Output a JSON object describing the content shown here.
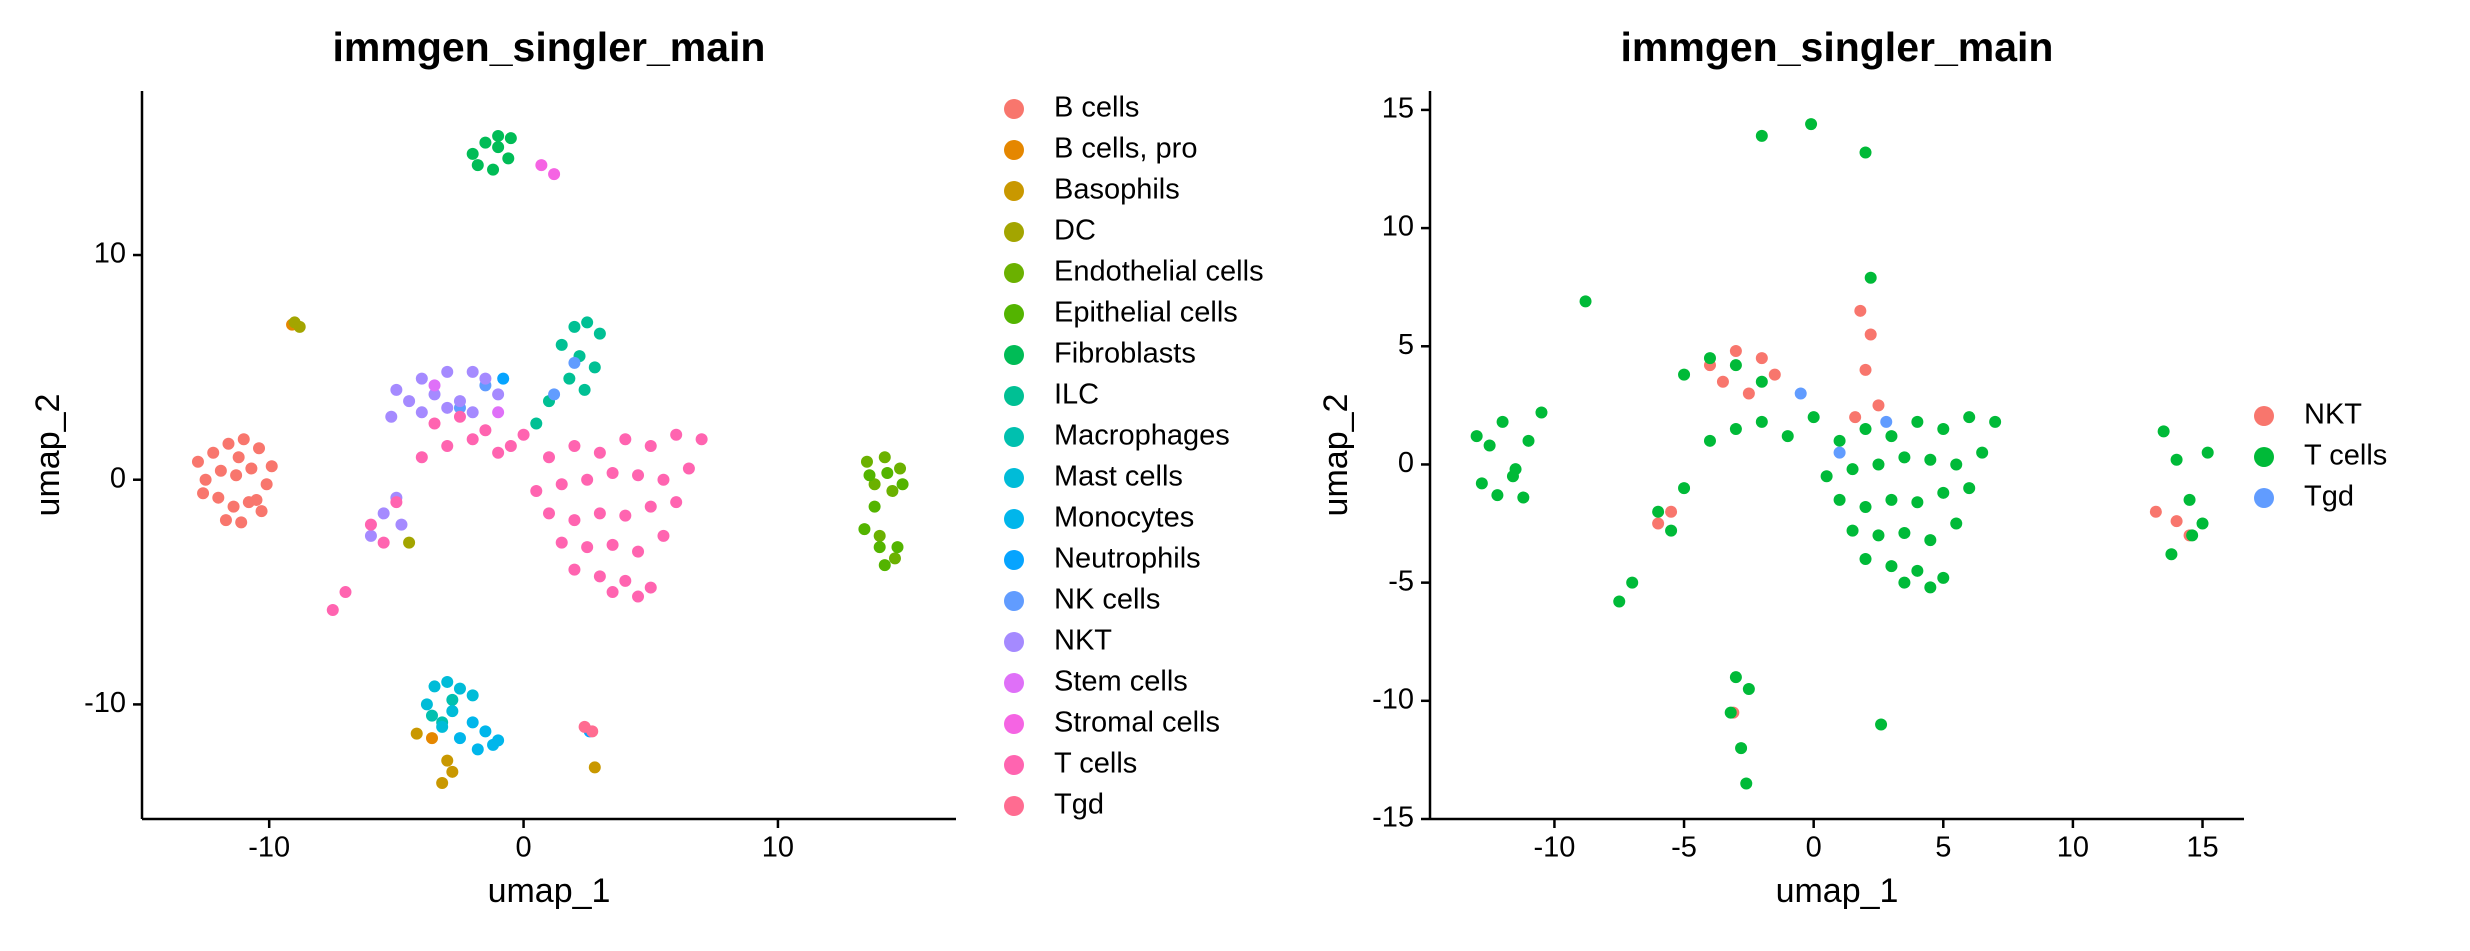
{
  "chart_data": [
    {
      "type": "scatter",
      "title": "immgen_singler_main",
      "x_label": "umap_1",
      "y_label": "umap_2",
      "xlim": [
        -15,
        17
      ],
      "ylim": [
        -15.1,
        17.3
      ],
      "xticks": [
        -10,
        0,
        10
      ],
      "yticks": [
        -10,
        0,
        10
      ],
      "series": [
        {
          "name": "B cells",
          "color": "#F8766D",
          "x": [
            -12.8,
            -12.2,
            -11.6,
            -11.0,
            -10.4,
            -9.9,
            -12.5,
            -11.9,
            -11.3,
            -10.7,
            -10.1,
            -12.0,
            -11.4,
            -10.8,
            -10.3,
            -12.6,
            -11.7,
            -11.1,
            -10.5,
            -11.2
          ],
          "y": [
            0.8,
            1.2,
            1.6,
            1.8,
            1.4,
            0.6,
            0.0,
            0.4,
            0.2,
            0.5,
            -0.2,
            -0.8,
            -1.2,
            -1.0,
            -1.4,
            -0.6,
            -1.8,
            -1.9,
            -0.9,
            1.0
          ]
        },
        {
          "name": "B cells, pro",
          "color": "#E58700",
          "x": [
            -3.6,
            -9.1
          ],
          "y": [
            -11.5,
            6.9
          ]
        },
        {
          "name": "Basophils",
          "color": "#C99800",
          "x": [
            -3,
            -2.8,
            -3.2,
            -4.2,
            2.8
          ],
          "y": [
            -12.5,
            -13,
            -13.5,
            -11.3,
            -12.8
          ]
        },
        {
          "name": "DC",
          "color": "#A3A500",
          "x": [
            -9,
            -8.8,
            -4.5
          ],
          "y": [
            7,
            6.8,
            -2.8
          ]
        },
        {
          "name": "Endothelial cells",
          "color": "#6BB100",
          "x": [
            13.5,
            14.2,
            14.8,
            13.8,
            14.5,
            14,
            14.6
          ],
          "y": [
            0.8,
            1,
            0.5,
            -0.2,
            -0.5,
            -2.5,
            -3.5
          ]
        },
        {
          "name": "Epithelial cells",
          "color": "#53B400",
          "x": [
            13.6,
            14.3,
            14.9,
            13.4,
            14,
            14.7,
            14.2,
            13.8
          ],
          "y": [
            0.2,
            0.3,
            -0.2,
            -2.2,
            -3,
            -3,
            -3.8,
            -1.2
          ]
        },
        {
          "name": "Fibroblasts",
          "color": "#00BC56",
          "x": [
            -2,
            -1.5,
            -1,
            -0.5,
            -1.8,
            -1.2,
            -0.6,
            -1
          ],
          "y": [
            14.5,
            15,
            15.3,
            15.2,
            14,
            13.8,
            14.3,
            14.8
          ]
        },
        {
          "name": "ILC",
          "color": "#00C094",
          "x": [
            1.5,
            2,
            2.5,
            3,
            2.2,
            2.8,
            1.8,
            2.4,
            1,
            0.5
          ],
          "y": [
            6,
            6.8,
            7,
            6.5,
            5.5,
            5,
            4.5,
            4,
            3.5,
            2.5
          ]
        },
        {
          "name": "Macrophages",
          "color": "#00C0AF",
          "x": [
            -3.6,
            -3.2,
            -2.8
          ],
          "y": [
            -10.5,
            -10.8,
            -9.8
          ]
        },
        {
          "name": "Mast cells",
          "color": "#00BCD8",
          "x": [
            -3.5,
            -3,
            -2.5,
            -2,
            -3.8,
            -2.8,
            -3.2
          ],
          "y": [
            -9.2,
            -9,
            -9.3,
            -9.6,
            -10,
            -10.3,
            -11
          ]
        },
        {
          "name": "Monocytes",
          "color": "#00B6EB",
          "x": [
            -2,
            -1.5,
            -1,
            -2.5,
            -1.8,
            -1.2
          ],
          "y": [
            -10.8,
            -11.2,
            -11.6,
            -11.5,
            -12,
            -11.8
          ]
        },
        {
          "name": "Neutrophils",
          "color": "#06A4FF",
          "x": [
            -0.8,
            2.6
          ],
          "y": [
            4.5,
            -11.2
          ]
        },
        {
          "name": "NK cells",
          "color": "#619CFF",
          "x": [
            -2.5,
            -1.5,
            2,
            1.2
          ],
          "y": [
            3.2,
            4.2,
            5.2,
            3.8
          ]
        },
        {
          "name": "NKT",
          "color": "#A58AFF",
          "x": [
            -5,
            -4,
            -3,
            -2,
            -1.5,
            -4.5,
            -3.5,
            -2.5,
            -1,
            -5.2,
            -4,
            -3,
            -2,
            -6,
            -5.5,
            -5,
            -4.8
          ],
          "y": [
            4,
            4.5,
            4.8,
            4.8,
            4.5,
            3.5,
            3.8,
            3.5,
            3.8,
            2.8,
            3,
            3.2,
            3,
            -2.5,
            -1.5,
            -0.8,
            -2
          ]
        },
        {
          "name": "Stem cells",
          "color": "#DF70F8",
          "x": [
            -1,
            -3.5
          ],
          "y": [
            3,
            4.2
          ]
        },
        {
          "name": "Stromal cells",
          "color": "#F564E3",
          "x": [
            0.7,
            1.2
          ],
          "y": [
            14,
            13.6
          ]
        },
        {
          "name": "T cells",
          "color": "#FF64B0",
          "x": [
            1,
            2,
            3,
            4,
            5,
            6,
            7,
            0.5,
            1.5,
            2.5,
            3.5,
            4.5,
            5.5,
            6.5,
            1,
            2,
            3,
            4,
            5,
            6,
            1.5,
            2.5,
            3.5,
            4.5,
            5.5,
            2,
            3,
            4,
            5,
            3.5,
            4.5,
            -3,
            -2,
            -1,
            0,
            -4,
            -5,
            -6,
            -5.5,
            -7,
            -7.5,
            -3.5,
            -2.5,
            -1.5,
            -0.5
          ],
          "y": [
            1,
            1.5,
            1.2,
            1.8,
            1.5,
            2,
            1.8,
            -0.5,
            -0.2,
            0,
            0.3,
            0.2,
            0,
            0.5,
            -1.5,
            -1.8,
            -1.5,
            -1.6,
            -1.2,
            -1,
            -2.8,
            -3,
            -2.9,
            -3.2,
            -2.5,
            -4,
            -4.3,
            -4.5,
            -4.8,
            -5,
            -5.2,
            1.5,
            1.8,
            1.2,
            2,
            1,
            -1,
            -2,
            -2.8,
            -5,
            -5.8,
            2.5,
            2.8,
            2.2,
            1.5
          ]
        },
        {
          "name": "Tgd",
          "color": "#FF6C91",
          "x": [
            2.4,
            2.7
          ],
          "y": [
            -11,
            -11.2
          ]
        }
      ]
    },
    {
      "type": "scatter",
      "title": "immgen_singler_main",
      "x_label": "umap_1",
      "y_label": "umap_2",
      "xlim": [
        -14.8,
        16.6
      ],
      "ylim": [
        -15,
        15.8
      ],
      "xticks": [
        -10,
        -5,
        0,
        5,
        10,
        15
      ],
      "yticks": [
        -15,
        -10,
        -5,
        0,
        5,
        10,
        15
      ],
      "series": [
        {
          "name": "NKT",
          "color": "#F8766D",
          "x": [
            -4,
            -3,
            -2,
            -1.5,
            -3.5,
            -2.5,
            1.8,
            2.2,
            2,
            2.5,
            1.6,
            -5.5,
            -6,
            13.2,
            14,
            -3.1,
            14.5
          ],
          "y": [
            4.2,
            4.8,
            4.5,
            3.8,
            3.5,
            3,
            6.5,
            5.5,
            4,
            2.5,
            2,
            -2,
            -2.5,
            -2,
            -2.4,
            -10.5,
            -3
          ]
        },
        {
          "name": "T cells",
          "color": "#00BA38",
          "x": [
            1,
            2,
            3,
            4,
            5,
            6,
            7,
            0.5,
            1.5,
            2.5,
            3.5,
            4.5,
            5.5,
            6.5,
            1,
            2,
            3,
            4,
            5,
            6,
            1.5,
            2.5,
            3.5,
            4.5,
            5.5,
            2,
            3,
            4,
            5,
            3.5,
            4.5,
            -3,
            -2,
            -1,
            0,
            -4,
            -5,
            -6,
            -5.5,
            -7,
            -7.5,
            -4,
            -3,
            -2,
            -5,
            -13,
            -12.5,
            -12,
            -11.5,
            -11,
            -10.5,
            -12.8,
            -12.2,
            -11.6,
            -11.2,
            -8.8,
            -3,
            -2.5,
            -3.2,
            -2.8,
            -2.6,
            13.5,
            14,
            14.5,
            15,
            13.8,
            14.6,
            15.2,
            2,
            2.6,
            -2,
            -0.1,
            2.2
          ],
          "y": [
            1,
            1.5,
            1.2,
            1.8,
            1.5,
            2,
            1.8,
            -0.5,
            -0.2,
            0,
            0.3,
            0.2,
            0,
            0.5,
            -1.5,
            -1.8,
            -1.5,
            -1.6,
            -1.2,
            -1,
            -2.8,
            -3,
            -2.9,
            -3.2,
            -2.5,
            -4,
            -4.3,
            -4.5,
            -4.8,
            -5,
            -5.2,
            1.5,
            1.8,
            1.2,
            2,
            1,
            -1,
            -2,
            -2.8,
            -5,
            -5.8,
            4.5,
            4.2,
            3.5,
            3.8,
            1.2,
            0.8,
            1.8,
            -0.2,
            1,
            2.2,
            -0.8,
            -1.3,
            -0.5,
            -1.4,
            6.9,
            -9,
            -9.5,
            -10.5,
            -12,
            -13.5,
            1.4,
            0.2,
            -1.5,
            -2.5,
            -3.8,
            -3,
            0.5,
            13.2,
            -11,
            13.9,
            14.4,
            7.9
          ]
        },
        {
          "name": "Tgd",
          "color": "#619CFF",
          "x": [
            1,
            2.8,
            -0.5
          ],
          "y": [
            0.5,
            1.8,
            3
          ]
        }
      ]
    }
  ]
}
